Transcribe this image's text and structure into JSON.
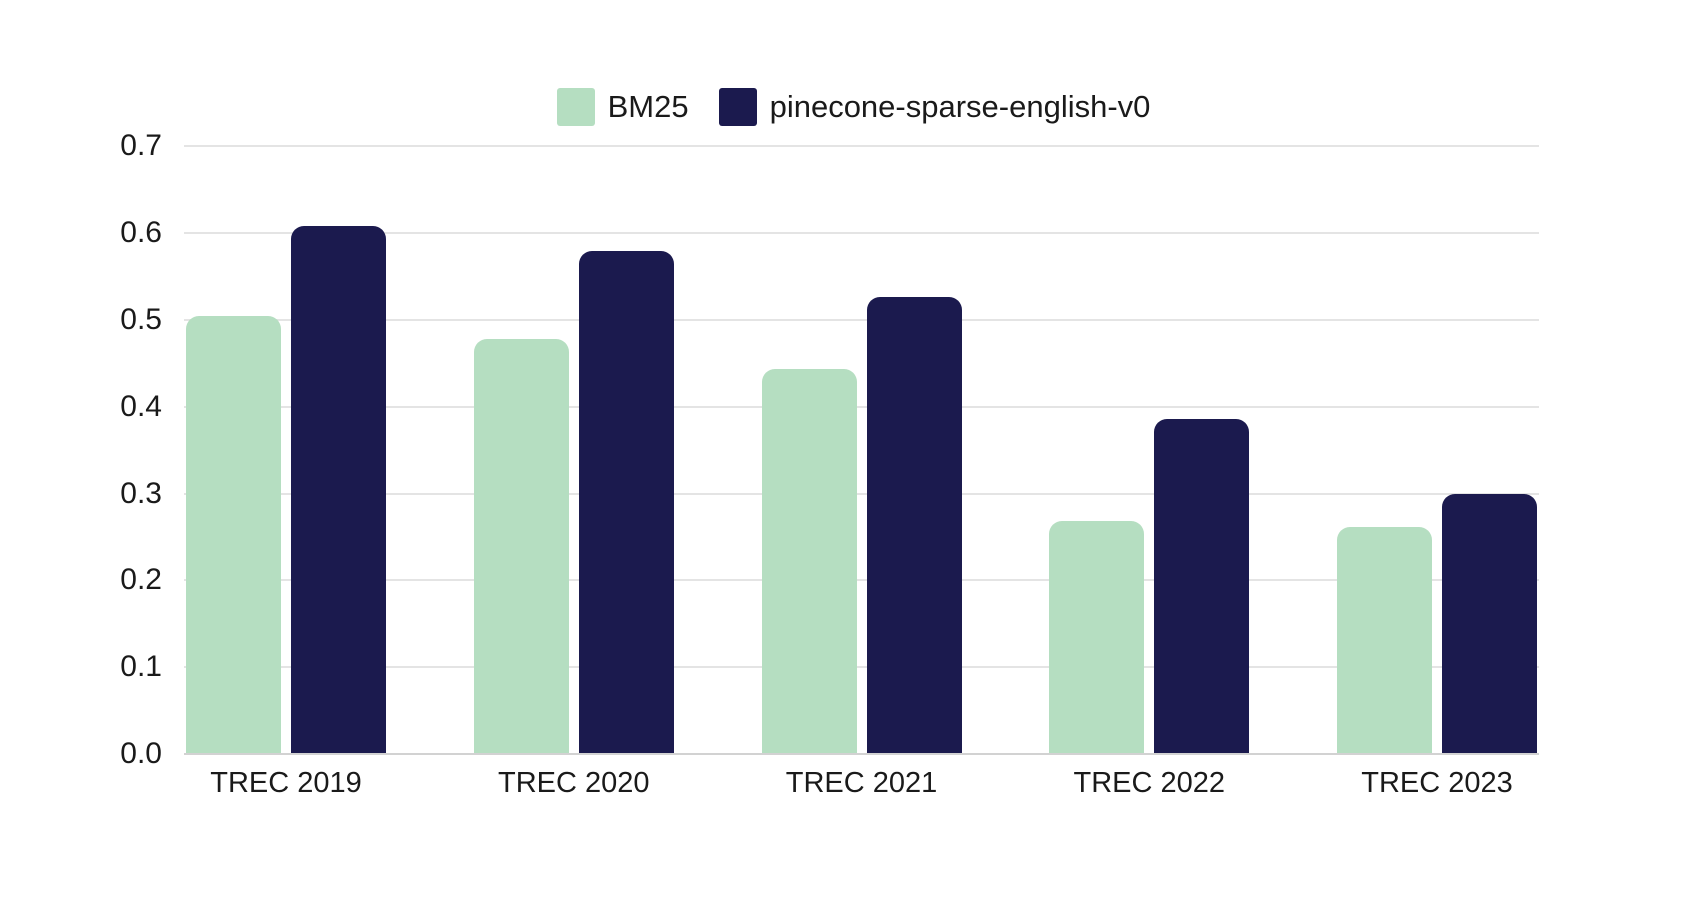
{
  "page": {
    "background": "#ffffff"
  },
  "chart_data": {
    "type": "bar",
    "title": "",
    "xlabel": "",
    "ylabel": "",
    "categories": [
      "TREC 2019",
      "TREC 2020",
      "TREC 2021",
      "TREC 2022",
      "TREC 2023"
    ],
    "series": [
      {
        "name": "BM25",
        "color": "#b5dec1",
        "values": [
          0.505,
          0.478,
          0.444,
          0.268,
          0.262
        ]
      },
      {
        "name": "pinecone-sparse-english-v0",
        "color": "#1b1a4e",
        "values": [
          0.608,
          0.579,
          0.527,
          0.386,
          0.299
        ]
      }
    ],
    "ylim": [
      0,
      0.7
    ],
    "yticks": [
      "0.0",
      "0.1",
      "0.2",
      "0.3",
      "0.4",
      "0.5",
      "0.6",
      "0.7"
    ],
    "grid": true,
    "legend_position": "top-center",
    "colors": {
      "grid_line": "#e4e4e4",
      "axis_line": "#d2d2d2",
      "text": "#1a1a1a"
    }
  }
}
